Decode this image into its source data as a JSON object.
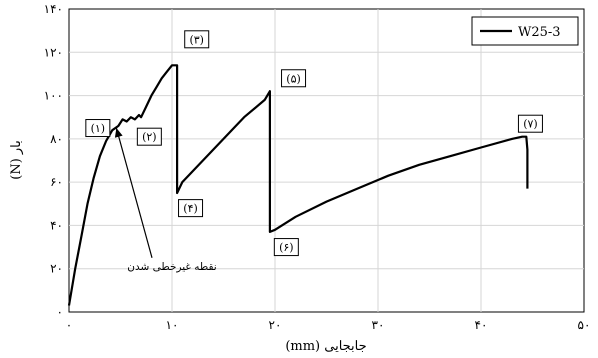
{
  "chart_data": {
    "type": "line",
    "xlabel": "جابجایی (mm)",
    "ylabel": "بار (N)",
    "xlim": [
      0,
      50
    ],
    "ylim": [
      0,
      140
    ],
    "xticks": [
      0,
      10,
      20,
      30,
      40,
      50
    ],
    "yticks": [
      0,
      20,
      40,
      60,
      80,
      100,
      120,
      140
    ],
    "xtick_labels": [
      "۰",
      "۱۰",
      "۲۰",
      "۳۰",
      "۴۰",
      "۵۰"
    ],
    "ytick_labels": [
      "۰",
      "۲۰",
      "۴۰",
      "۶۰",
      "۸۰",
      "۱۰۰",
      "۱۲۰",
      "۱۴۰"
    ],
    "grid": true,
    "legend_position": "top-right",
    "series": [
      {
        "name": "W25-3",
        "color": "#000000",
        "x": [
          0,
          0.6,
          1.2,
          1.8,
          2.4,
          3.0,
          3.6,
          4.2,
          4.8,
          5.2,
          5.6,
          6.0,
          6.4,
          6.8,
          7.0,
          7.5,
          8.0,
          8.5,
          9.0,
          9.5,
          10.0,
          10.5,
          10.5,
          11.0,
          13.0,
          15.0,
          17.0,
          19.0,
          19.5,
          19.5,
          20.0,
          22.0,
          25.0,
          28.0,
          31.0,
          34.0,
          37.0,
          40.0,
          43.0,
          44.0,
          44.4,
          44.5,
          44.5
        ],
        "y": [
          3,
          20,
          35,
          50,
          62,
          72,
          79,
          84,
          86,
          89,
          88,
          90,
          89,
          91,
          90,
          95,
          100,
          104,
          108,
          111,
          114,
          114,
          55,
          60,
          70,
          80,
          90,
          98,
          102,
          37,
          38,
          44,
          51,
          57,
          63,
          68,
          72,
          76,
          80,
          81,
          81,
          75,
          57
        ]
      }
    ],
    "point_labels": [
      {
        "text": "(۱)",
        "x": 2.8,
        "y": 85
      },
      {
        "text": "(۲)",
        "x": 7.8,
        "y": 81
      },
      {
        "text": "(۳)",
        "x": 12.4,
        "y": 126
      },
      {
        "text": "(۴)",
        "x": 11.8,
        "y": 48
      },
      {
        "text": "(۵)",
        "x": 21.8,
        "y": 108
      },
      {
        "text": "(۶)",
        "x": 21.1,
        "y": 30
      },
      {
        "text": "(۷)",
        "x": 44.8,
        "y": 87
      }
    ],
    "annotation": {
      "text": "نقطه غیرخطی شدن",
      "label_x": 10.0,
      "label_y": 19.5,
      "target_x": 4.6,
      "target_y": 85
    }
  }
}
